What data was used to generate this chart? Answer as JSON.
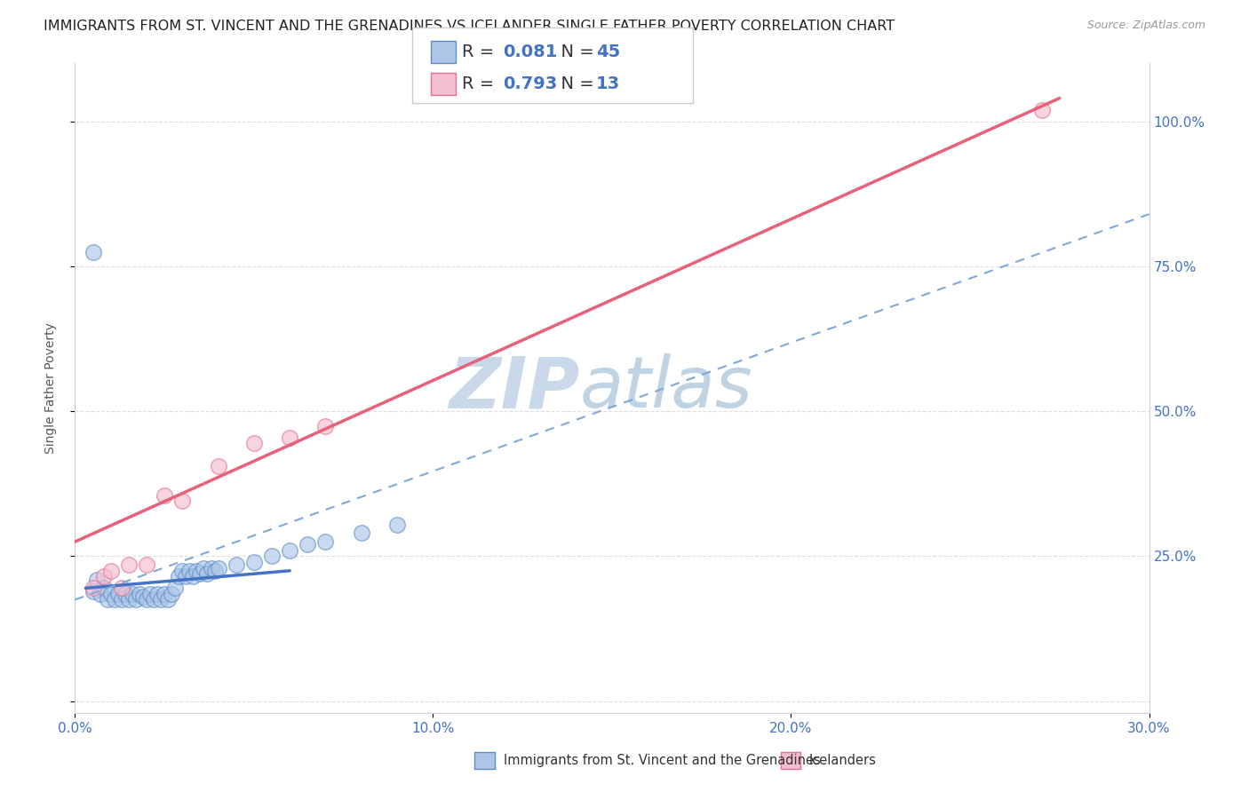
{
  "title": "IMMIGRANTS FROM ST. VINCENT AND THE GRENADINES VS ICELANDER SINGLE FATHER POVERTY CORRELATION CHART",
  "source": "Source: ZipAtlas.com",
  "ylabel": "Single Father Poverty",
  "xlim": [
    0.0,
    0.003
  ],
  "ylim": [
    -0.02,
    1.1
  ],
  "xtick_vals": [
    0.0,
    0.001,
    0.002,
    0.003
  ],
  "xtick_labels": [
    "0.0%",
    "10.0%",
    "20.0%",
    "30.0%"
  ],
  "ytick_vals": [
    0.0,
    0.25,
    0.5,
    0.75,
    1.0
  ],
  "ytick_labels": [
    "",
    "25.0%",
    "50.0%",
    "75.0%",
    "100.0%"
  ],
  "blue_R": 0.081,
  "blue_N": 45,
  "pink_R": 0.793,
  "pink_N": 13,
  "blue_fill": "#adc6e8",
  "pink_fill": "#f5bdd0",
  "blue_edge": "#5b8ec4",
  "pink_edge": "#e07090",
  "blue_line_color": "#4472c4",
  "pink_line_color": "#e8607a",
  "dashed_line_color": "#7fa8d8",
  "legend1_label": "Immigrants from St. Vincent and the Grenadines",
  "legend2_label": "Icelanders",
  "blue_scatter_x": [
    5e-05,
    6e-05,
    7e-05,
    8e-05,
    9e-05,
    0.0001,
    0.00011,
    0.00012,
    0.00013,
    0.00014,
    0.00015,
    0.00016,
    0.00017,
    0.00018,
    0.00019,
    0.0002,
    0.00021,
    0.00022,
    0.00023,
    0.00024,
    0.00025,
    0.00026,
    0.00027,
    0.00028,
    0.00029,
    0.0003,
    0.00031,
    0.00032,
    0.00033,
    0.00034,
    0.00035,
    0.00036,
    0.00037,
    0.00038,
    0.00039,
    0.0004,
    0.00045,
    0.0005,
    0.00055,
    0.0006,
    0.00065,
    0.0007,
    0.0008,
    0.0009,
    5e-05
  ],
  "blue_scatter_y": [
    0.19,
    0.21,
    0.185,
    0.195,
    0.175,
    0.185,
    0.175,
    0.185,
    0.175,
    0.185,
    0.175,
    0.185,
    0.175,
    0.185,
    0.18,
    0.175,
    0.185,
    0.175,
    0.185,
    0.175,
    0.185,
    0.175,
    0.185,
    0.195,
    0.215,
    0.225,
    0.215,
    0.225,
    0.215,
    0.225,
    0.22,
    0.23,
    0.22,
    0.23,
    0.225,
    0.23,
    0.235,
    0.24,
    0.25,
    0.26,
    0.27,
    0.275,
    0.29,
    0.305,
    0.775
  ],
  "pink_scatter_x": [
    5e-05,
    8e-05,
    0.0001,
    0.00013,
    0.00015,
    0.0002,
    0.00025,
    0.0003,
    0.0004,
    0.0005,
    0.0006,
    0.0007,
    0.0027
  ],
  "pink_scatter_y": [
    0.195,
    0.215,
    0.225,
    0.195,
    0.235,
    0.235,
    0.355,
    0.345,
    0.405,
    0.445,
    0.455,
    0.475,
    1.02
  ],
  "blue_trendline": [
    3e-05,
    0.195,
    0.0006,
    0.225
  ],
  "pink_trendline": [
    0.0,
    0.275,
    0.00275,
    1.04
  ],
  "dashed_trendline": [
    0.0,
    0.175,
    0.003,
    0.84
  ],
  "background_color": "#ffffff",
  "grid_color": "#d8d8d8",
  "watermark_text_1": "ZIP",
  "watermark_text_2": "atlas",
  "watermark_color_1": "#c5d5e8",
  "watermark_color_2": "#b8cfe0",
  "title_fontsize": 11.5,
  "tick_fontsize": 11,
  "legend_fontsize": 14
}
